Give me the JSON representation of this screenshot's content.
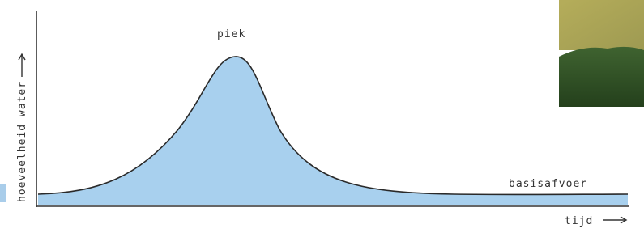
{
  "labels": {
    "peak": "piek",
    "baseflow": "basisafvoer",
    "y_axis": "hoeveelheid water",
    "x_axis": "tijd"
  }
}
